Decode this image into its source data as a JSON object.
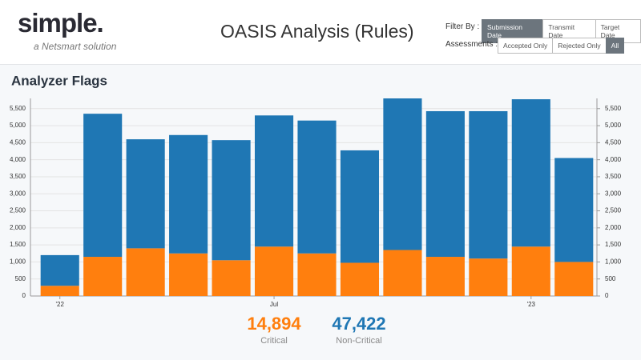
{
  "header": {
    "logo": "simple.",
    "tagline": "a Netsmart solution",
    "title": "OASIS Analysis (Rules)",
    "filter_label": "Filter By :",
    "filter_options": [
      "Submission Date",
      "Transmit Date",
      "Target Date"
    ],
    "assessments_label": "Assessments :",
    "assessment_options": [
      "Accepted Only",
      "Rejected Only",
      "All"
    ]
  },
  "chart_data": {
    "type": "stacked_bar",
    "title": "Analyzer Flags",
    "categories": [
      "'22",
      null,
      null,
      null,
      null,
      "Jul",
      null,
      null,
      null,
      null,
      null,
      "'23",
      null
    ],
    "series": [
      {
        "name": "Critical",
        "color": "#ff7f0e",
        "values": [
          300,
          1150,
          1400,
          1250,
          1050,
          1450,
          1250,
          975,
          1350,
          1150,
          1100,
          1450,
          1000
        ]
      },
      {
        "name": "Non-Critical",
        "color": "#1f77b4",
        "values": [
          900,
          4200,
          3200,
          3475,
          3525,
          3850,
          3900,
          3300,
          4450,
          4275,
          4325,
          4325,
          3050
        ]
      }
    ],
    "totals": [
      "14,894",
      "47,422"
    ],
    "ylim": [
      0,
      5800
    ],
    "yticks": [
      0,
      500,
      {
        "value": 1000,
        "label": "1,000"
      },
      {
        "value": 1500,
        "label": "1,500"
      },
      {
        "value": 2000,
        "label": "2,000"
      },
      {
        "value": 2500,
        "label": "2,500"
      },
      {
        "value": 3000,
        "label": "3,000"
      },
      {
        "value": 3500,
        "label": "3,500"
      },
      {
        "value": 4000,
        "label": "4,000"
      },
      {
        "value": 4500,
        "label": "4,500"
      },
      {
        "value": 5000,
        "label": "5,000"
      },
      {
        "value": 5500,
        "label": "5,500"
      }
    ],
    "y2lim": [
      0,
      5800
    ],
    "y2ticks": [
      0,
      500,
      {
        "value": 1000,
        "label": "1,000"
      },
      {
        "value": 1500,
        "label": "1,500"
      },
      {
        "value": 2000,
        "label": "2,000"
      },
      {
        "value": 2500,
        "label": "2,500"
      },
      {
        "value": 3000,
        "label": "3,000"
      },
      {
        "value": 3500,
        "label": "3,500"
      },
      {
        "value": 4000,
        "label": "4,000"
      },
      {
        "value": 4500,
        "label": "4,500"
      },
      {
        "value": 5000,
        "label": "5,000"
      },
      {
        "value": 5500,
        "label": "5,500"
      }
    ],
    "grid": true
  }
}
